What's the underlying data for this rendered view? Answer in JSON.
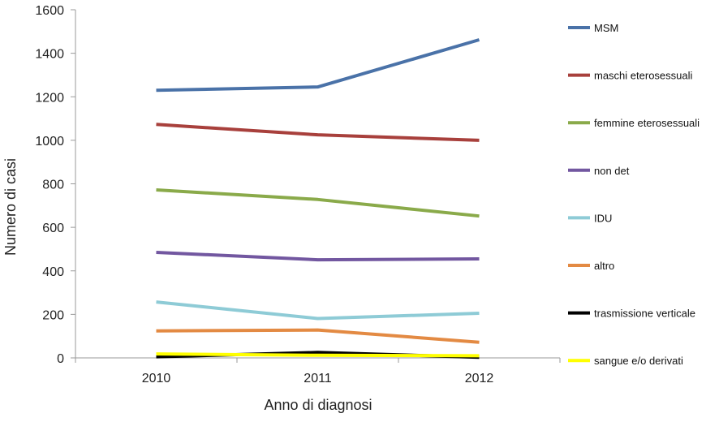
{
  "chart_data": {
    "type": "line",
    "title": "",
    "xlabel": "Anno di diagnosi",
    "ylabel": "Numero di casi",
    "x": [
      "2010",
      "2011",
      "2012"
    ],
    "ylim": [
      0,
      1600
    ],
    "yticks": [
      0,
      200,
      400,
      600,
      800,
      1000,
      1200,
      1400,
      1600
    ],
    "grid": false,
    "legend_position": "right",
    "series": [
      {
        "name": "MSM",
        "color": "#4a72a8",
        "values": [
          1230,
          1245,
          1462
        ]
      },
      {
        "name": "maschi eterosessuali",
        "color": "#a8403c",
        "values": [
          1073,
          1025,
          1000
        ]
      },
      {
        "name": "femmine eterosessuali",
        "color": "#8aaa4a",
        "values": [
          772,
          728,
          652
        ]
      },
      {
        "name": "non det",
        "color": "#7257a0",
        "values": [
          485,
          451,
          455
        ]
      },
      {
        "name": "IDU",
        "color": "#8ecbd6",
        "values": [
          257,
          181,
          205
        ]
      },
      {
        "name": "altro",
        "color": "#e38a43",
        "values": [
          124,
          128,
          72
        ]
      },
      {
        "name": "trasmissione verticale",
        "color": "#000000",
        "values": [
          5,
          25,
          3
        ]
      },
      {
        "name": "sangue e/o derivati",
        "color": "#ffff00",
        "values": [
          18,
          12,
          10
        ]
      }
    ]
  }
}
